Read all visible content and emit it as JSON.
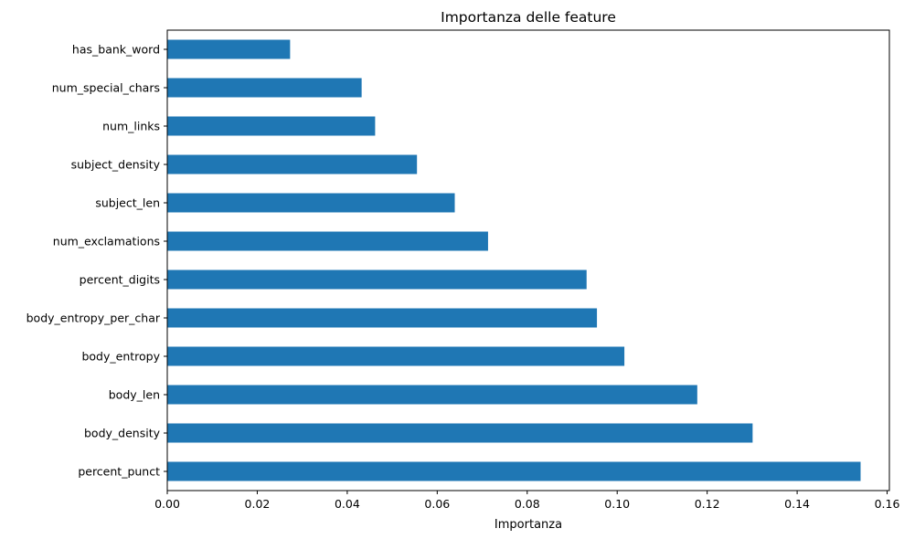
{
  "chart_data": {
    "type": "bar",
    "orientation": "horizontal",
    "title": "Importanza delle feature",
    "xlabel": "Importanza",
    "ylabel": "",
    "xlim": [
      0,
      0.1605
    ],
    "xticks": [
      0.0,
      0.02,
      0.04,
      0.06,
      0.08,
      0.1,
      0.12,
      0.14,
      0.16
    ],
    "xtick_labels": [
      "0.00",
      "0.02",
      "0.04",
      "0.06",
      "0.08",
      "0.10",
      "0.12",
      "0.14",
      "0.16"
    ],
    "grid": false,
    "bar_color": "#1f77b4",
    "categories": [
      "has_bank_word",
      "num_special_chars",
      "num_links",
      "subject_density",
      "subject_len",
      "num_exclamations",
      "percent_digits",
      "body_entropy_per_char",
      "body_entropy",
      "body_len",
      "body_density",
      "percent_punct"
    ],
    "values": [
      0.0273,
      0.0432,
      0.0462,
      0.0555,
      0.0639,
      0.0713,
      0.0932,
      0.0955,
      0.1016,
      0.1178,
      0.1301,
      0.1541
    ]
  }
}
